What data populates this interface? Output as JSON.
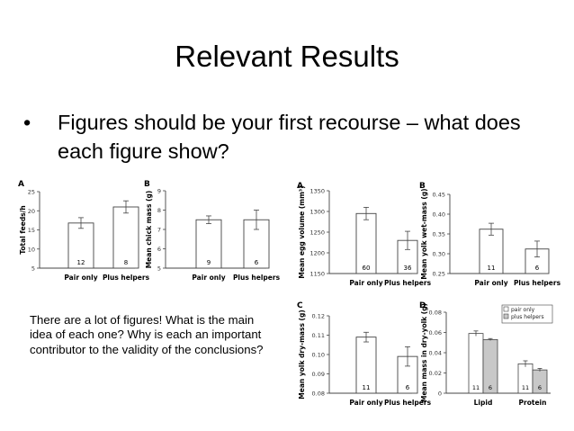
{
  "slide": {
    "title": "Relevant Results",
    "bullet": "Figures should be your first recourse – what does each figure show?",
    "callout": "There are a lot of figures! What is the main idea of each one? Why is each an important contributor to the validity of the conclusions?"
  },
  "colors": {
    "bar_pair": "#ffffff",
    "bar_helpers": "#c8c8c8",
    "axis": "#444444"
  },
  "chart_data": [
    {
      "type": "bar",
      "panel": "A",
      "categories": [
        "Pair only",
        "Plus helpers"
      ],
      "values": [
        16.8,
        21.0
      ],
      "errors": [
        1.4,
        1.6
      ],
      "sample_sizes": [
        "12",
        "8"
      ],
      "ylabel": "Total feeds/h",
      "ylim": [
        5,
        25
      ],
      "yticks": [
        5,
        10,
        15,
        20,
        25
      ]
    },
    {
      "type": "bar",
      "panel": "B",
      "categories": [
        "Pair only",
        "Plus helpers"
      ],
      "values": [
        7.5,
        7.5
      ],
      "errors": [
        0.2,
        0.5
      ],
      "sample_sizes": [
        "9",
        "6"
      ],
      "ylabel": "Mean chick mass (g)",
      "ylim": [
        5,
        9
      ],
      "yticks": [
        5,
        6,
        7,
        8,
        9
      ]
    },
    {
      "type": "bar",
      "panel": "A",
      "categories": [
        "Pair only",
        "Plus helpers"
      ],
      "values": [
        1295,
        1230
      ],
      "errors": [
        15,
        22
      ],
      "sample_sizes": [
        "60",
        "36"
      ],
      "ylabel": "Mean egg volume (mm³)",
      "ylim": [
        1150,
        1350
      ],
      "yticks": [
        1150,
        1200,
        1250,
        1300,
        1350
      ]
    },
    {
      "type": "bar",
      "panel": "B",
      "categories": [
        "Pair only",
        "Plus helpers"
      ],
      "values": [
        0.362,
        0.312
      ],
      "errors": [
        0.015,
        0.02
      ],
      "sample_sizes": [
        "11",
        "6"
      ],
      "ylabel": "Mean yolk wet-mass (g)",
      "ylim": [
        0.25,
        0.45
      ],
      "yticks": [
        "0.25",
        "0.30",
        "0.35",
        "0.40",
        "0.45"
      ]
    },
    {
      "type": "bar",
      "panel": "C",
      "categories": [
        "Pair only",
        "Plus helpers"
      ],
      "values": [
        0.109,
        0.099
      ],
      "errors": [
        0.0025,
        0.005
      ],
      "sample_sizes": [
        "11",
        "6"
      ],
      "ylabel": "Mean yolk dry-mass (g)",
      "ylim": [
        0.08,
        0.12
      ],
      "yticks": [
        "0.08",
        "0.09",
        "0.10",
        "0.11",
        "0.12"
      ]
    },
    {
      "type": "bar",
      "panel": "D",
      "categories": [
        "Lipid",
        "Protein"
      ],
      "series": [
        {
          "name": "pair only",
          "values": [
            0.059,
            0.029
          ],
          "errors": [
            0.0025,
            0.003
          ],
          "sample_sizes": [
            "11",
            "11"
          ]
        },
        {
          "name": "plus helpers",
          "values": [
            0.053,
            0.023
          ],
          "errors": [
            0.001,
            0.0015
          ],
          "sample_sizes": [
            "6",
            "6"
          ]
        }
      ],
      "ylabel": "Mean mass in dry-yolk (g)",
      "ylim": [
        0,
        0.08
      ],
      "yticks": [
        "0",
        "0.02",
        "0.04",
        "0.06",
        "0.08"
      ],
      "legend": "top-right"
    }
  ]
}
